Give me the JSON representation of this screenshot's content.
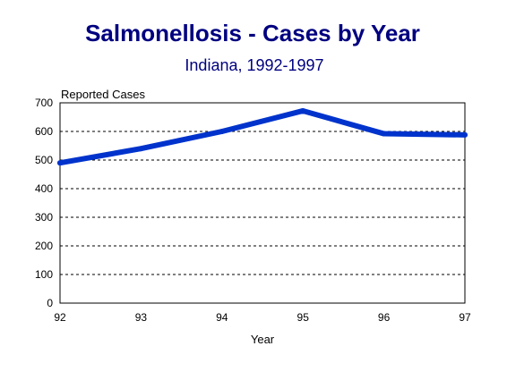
{
  "chart_data": {
    "type": "line",
    "title": "Salmonellosis - Cases by Year",
    "subtitle": "Indiana, 1992-1997",
    "xlabel": "Year",
    "ylabel": "Reported Cases",
    "categories": [
      "92",
      "93",
      "94",
      "95",
      "96",
      "97"
    ],
    "series": [
      {
        "values": [
          490,
          540,
          600,
          672,
          592,
          588
        ]
      }
    ],
    "ylim": [
      0,
      700
    ],
    "yticks": [
      "0",
      "100",
      "200",
      "300",
      "400",
      "500",
      "600",
      "700"
    ],
    "grid": "horizontal dashed",
    "legend": "none",
    "colors": {
      "title": "#000080",
      "line": "#0033CC",
      "grid": "#000000",
      "frame": "#000000"
    }
  }
}
